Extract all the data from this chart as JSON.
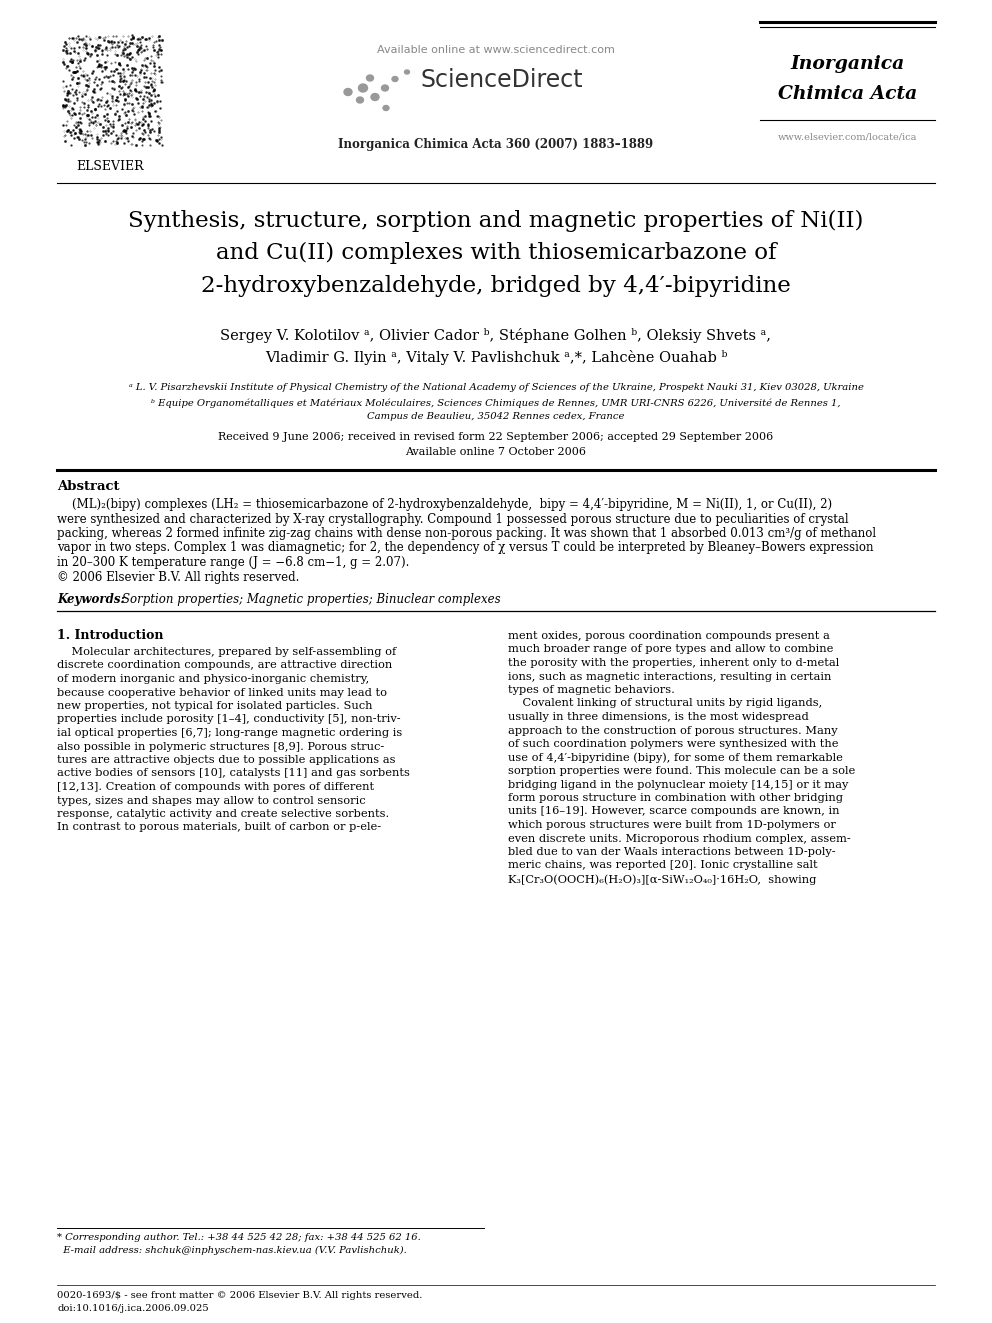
{
  "bg_color": "#ffffff",
  "title_text": "Synthesis, structure, sorption and magnetic properties of Ni(II)\nand Cu(II) complexes with thiosemicarbazone of\n2-hydroxybenzaldehyde, bridged by 4,4′-bipyridine",
  "authors_line1": "Sergey V. Kolotilov ᵃ, Olivier Cador ᵇ, Stéphane Golhen ᵇ, Oleksiy Shvets ᵃ,",
  "authors_line2": "Vladimir G. Ilyin ᵃ, Vitaly V. Pavlishchuk ᵃ,*, Lahcène Ouahab ᵇ",
  "affil_a": "ᵃ L. V. Pisarzhevskii Institute of Physical Chemistry of the National Academy of Sciences of the Ukraine, Prospekt Nauki 31, Kiev 03028, Ukraine",
  "affil_b": "ᵇ Equipe Organométalliques et Matériaux Moléculaires, Sciences Chimiques de Rennes, UMR URI-CNRS 6226, Université de Rennes 1,",
  "affil_b2": "Campus de Beaulieu, 35042 Rennes cedex, France",
  "received_text": "Received 9 June 2006; received in revised form 22 September 2006; accepted 29 September 2006",
  "available_text": "Available online 7 October 2006",
  "journal_header": "Inorganica Chimica Acta 360 (2007) 1883–1889",
  "available_online": "Available online at www.sciencedirect.com",
  "journal_name_line1": "Inorganica",
  "journal_name_line2": "Chimica Acta",
  "website": "www.elsevier.com/locate/ica",
  "abstract_label": "Abstract",
  "abstract_text1": "    (ML)₂(bipy) complexes (LH₂ = thiosemicarbazone of 2-hydroxybenzaldehyde,  bipy = 4,4′-bipyridine, M = Ni(II), 1, or Cu(II), 2)",
  "abstract_text2": "were synthesized and characterized by X-ray crystallography. Compound 1 possessed porous structure due to peculiarities of crystal",
  "abstract_text3": "packing, whereas 2 formed infinite zig-zag chains with dense non-porous packing. It was shown that 1 absorbed 0.013 cm³/g of methanol",
  "abstract_text4": "vapor in two steps. Complex 1 was diamagnetic; for 2, the dependency of χ versus T could be interpreted by Bleaney–Bowers expression",
  "abstract_text5": "in 20–300 K temperature range (J = −6.8 cm−1, g = 2.07).",
  "abstract_text6": "© 2006 Elsevier B.V. All rights reserved.",
  "keywords_label": "Keywords:",
  "keywords_text": "Sorption properties; Magnetic properties; Binuclear complexes",
  "section1_title": "1. Introduction",
  "intro_col1_lines": [
    "    Molecular architectures, prepared by self-assembling of",
    "discrete coordination compounds, are attractive direction",
    "of modern inorganic and physico-inorganic chemistry,",
    "because cooperative behavior of linked units may lead to",
    "new properties, not typical for isolated particles. Such",
    "properties include porosity [1–4], conductivity [5], non-triv-",
    "ial optical properties [6,7]; long-range magnetic ordering is",
    "also possible in polymeric structures [8,9]. Porous struc-",
    "tures are attractive objects due to possible applications as",
    "active bodies of sensors [10], catalysts [11] and gas sorbents",
    "[12,13]. Creation of compounds with pores of different",
    "types, sizes and shapes may allow to control sensoric",
    "response, catalytic activity and create selective sorbents.",
    "In contrast to porous materials, built of carbon or p-ele-"
  ],
  "intro_col2_lines": [
    "ment oxides, porous coordination compounds present a",
    "much broader range of pore types and allow to combine",
    "the porosity with the properties, inherent only to d-metal",
    "ions, such as magnetic interactions, resulting in certain",
    "types of magnetic behaviors.",
    "    Covalent linking of structural units by rigid ligands,",
    "usually in three dimensions, is the most widespread",
    "approach to the construction of porous structures. Many",
    "of such coordination polymers were synthesized with the",
    "use of 4,4′-bipyridine (bipy), for some of them remarkable",
    "sorption properties were found. This molecule can be a sole",
    "bridging ligand in the polynuclear moiety [14,15] or it may",
    "form porous structure in combination with other bridging",
    "units [16–19]. However, scarce compounds are known, in",
    "which porous structures were built from 1D-polymers or",
    "even discrete units. Microporous rhodium complex, assem-",
    "bled due to van der Waals interactions between 1D-poly-",
    "meric chains, was reported [20]. Ionic crystalline salt",
    "K₃[Cr₃O(OOCH)₆(H₂O)₃][α-SiW₁₂O₄₀]·16H₂O,  showing"
  ],
  "footnote_star": "* Corresponding author. Tel.: +38 44 525 42 28; fax: +38 44 525 62 16.",
  "footnote_email": "  E-mail address: shchuk@inphyschem-nas.kiev.ua (V.V. Pavlishchuk).",
  "footer_line1": "0020-1693/$ - see front matter © 2006 Elsevier B.V. All rights reserved.",
  "footer_line2": "doi:10.1016/j.ica.2006.09.025"
}
